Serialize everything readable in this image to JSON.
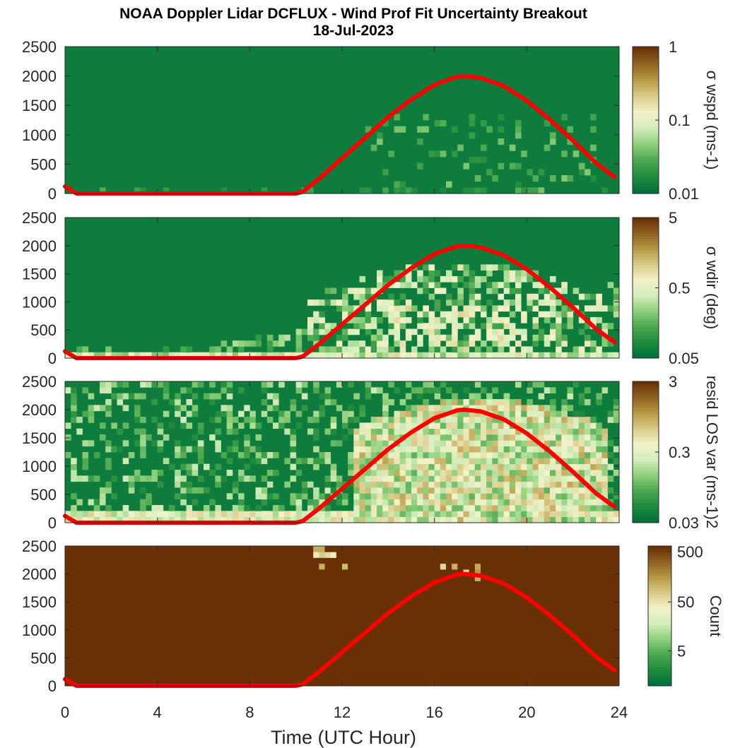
{
  "title_line1": "NOAA Doppler Lidar DCFLUX - Wind Prof Fit Uncertainty Breakout",
  "title_line2": "18-Jul-2023",
  "chart_data": {
    "type": "heatmap",
    "xlabel": "Time (UTC Hour)",
    "xlim": [
      0,
      24
    ],
    "xticks": [
      0,
      4,
      8,
      12,
      16,
      20,
      24
    ],
    "ylim": [
      0,
      2500
    ],
    "yticks": [
      0,
      500,
      1000,
      1500,
      2000,
      2500
    ],
    "red_line": {
      "description_visible": "red solar-elevation style curve overlaid on every panel",
      "points": [
        [
          0,
          120
        ],
        [
          0.5,
          0
        ],
        [
          10,
          0
        ],
        [
          10.3,
          30
        ],
        [
          11,
          250
        ],
        [
          12,
          600
        ],
        [
          13,
          950
        ],
        [
          14,
          1300
        ],
        [
          15,
          1600
        ],
        [
          16,
          1850
        ],
        [
          17,
          1990
        ],
        [
          17.3,
          2000
        ],
        [
          18,
          1970
        ],
        [
          19,
          1830
        ],
        [
          20,
          1580
        ],
        [
          21,
          1260
        ],
        [
          22,
          900
        ],
        [
          23,
          520
        ],
        [
          23.8,
          280
        ]
      ]
    },
    "panels": [
      {
        "id": "wspd",
        "colorbar_label": "σ wspd (ms-1)",
        "colorbar_ticks": [
          "1",
          "0.1",
          "0.01"
        ],
        "scale": "log",
        "range": [
          0.01,
          1
        ],
        "base_value": 0.012
      },
      {
        "id": "wdir",
        "colorbar_label": "σ wdir (deg)",
        "colorbar_ticks": [
          "5",
          "0.5",
          "0.05"
        ],
        "scale": "log",
        "range": [
          0.05,
          5
        ],
        "base_value": 0.06
      },
      {
        "id": "resid",
        "colorbar_label": "resid LOS var (ms-1)2",
        "colorbar_ticks": [
          "3",
          "0.3",
          "0.03"
        ],
        "scale": "log",
        "range": [
          0.03,
          3
        ],
        "base_value": 0.04
      },
      {
        "id": "count",
        "colorbar_label": "Count",
        "colorbar_ticks": [
          "500",
          "50",
          "5"
        ],
        "scale": "log",
        "range": [
          1,
          700
        ],
        "base_value": 700
      }
    ],
    "colormap": [
      "#00703c",
      "#1f8b3c",
      "#4aa850",
      "#8fcf7a",
      "#d2edbb",
      "#f3f2c8",
      "#d9cc8a",
      "#b89a47",
      "#8f6421",
      "#6a3106"
    ]
  }
}
